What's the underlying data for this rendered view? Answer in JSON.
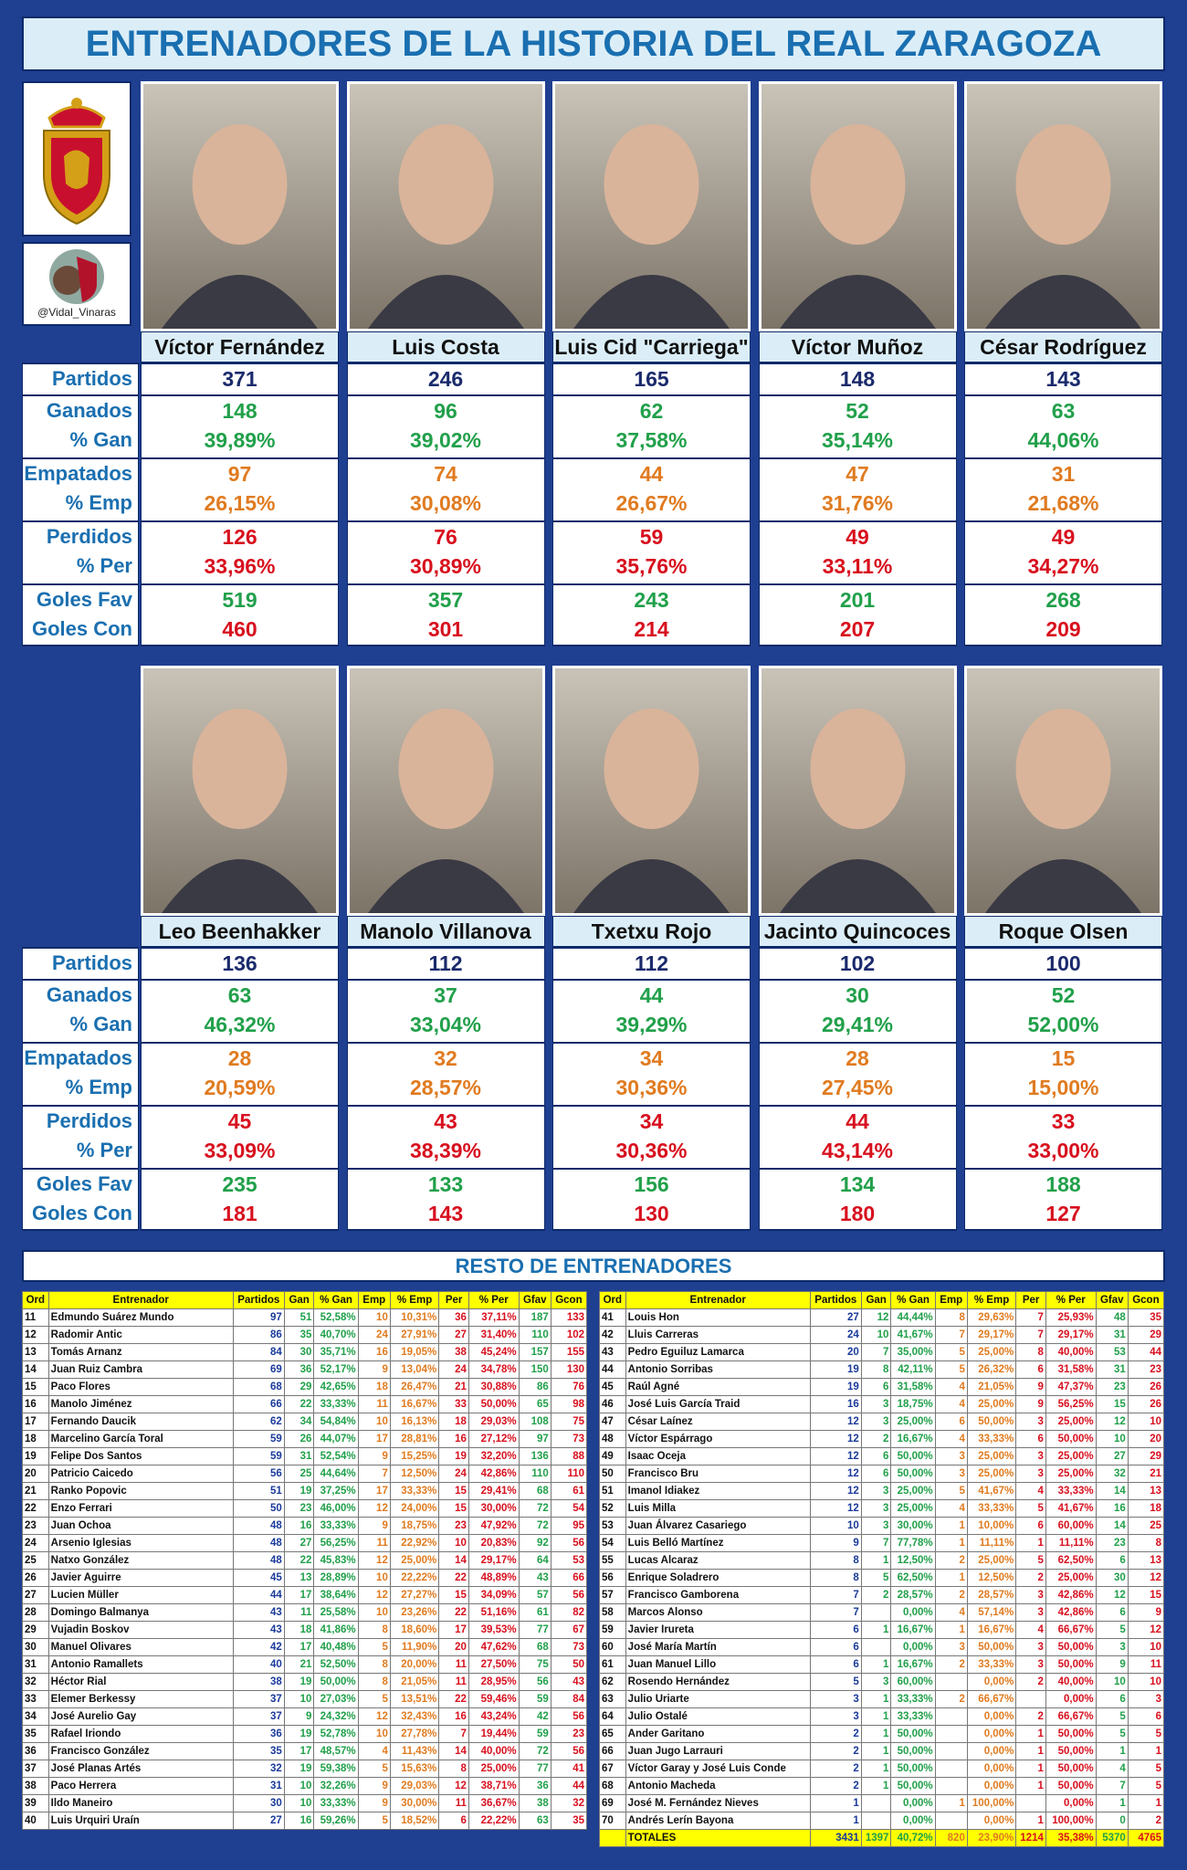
{
  "title": "ENTRENADORES DE LA HISTORIA DEL REAL ZARAGOZA",
  "handle": "@Vidal_Vinaras",
  "stat_labels": [
    "Partidos",
    "Ganados",
    "% Gan",
    "Empatados",
    "% Emp",
    "Perdidos",
    "% Per",
    "Goles Fav",
    "Goles Con"
  ],
  "groups": [
    {
      "coaches": [
        {
          "name": "Víctor Fernández",
          "stats": [
            371,
            148,
            "39,89%",
            97,
            "26,15%",
            126,
            "33,96%",
            519,
            460
          ]
        },
        {
          "name": "Luis Costa",
          "stats": [
            246,
            96,
            "39,02%",
            74,
            "30,08%",
            76,
            "30,89%",
            357,
            301
          ]
        },
        {
          "name": "Luis Cid \"Carriega\"",
          "stats": [
            165,
            62,
            "37,58%",
            44,
            "26,67%",
            59,
            "35,76%",
            243,
            214
          ]
        },
        {
          "name": "Víctor Muñoz",
          "stats": [
            148,
            52,
            "35,14%",
            47,
            "31,76%",
            49,
            "33,11%",
            201,
            207
          ]
        },
        {
          "name": "César Rodríguez",
          "stats": [
            143,
            63,
            "44,06%",
            31,
            "21,68%",
            49,
            "34,27%",
            268,
            209
          ]
        }
      ]
    },
    {
      "coaches": [
        {
          "name": "Leo Beenhakker",
          "stats": [
            136,
            63,
            "46,32%",
            28,
            "20,59%",
            45,
            "33,09%",
            235,
            181
          ]
        },
        {
          "name": "Manolo Villanova",
          "stats": [
            112,
            37,
            "33,04%",
            32,
            "28,57%",
            43,
            "38,39%",
            133,
            143
          ]
        },
        {
          "name": "Txetxu Rojo",
          "stats": [
            112,
            44,
            "39,29%",
            34,
            "30,36%",
            34,
            "30,36%",
            156,
            130
          ]
        },
        {
          "name": "Jacinto Quincoces",
          "stats": [
            102,
            30,
            "29,41%",
            28,
            "27,45%",
            44,
            "43,14%",
            134,
            180
          ]
        },
        {
          "name": "Roque Olsen",
          "stats": [
            100,
            52,
            "52,00%",
            15,
            "15,00%",
            33,
            "33,00%",
            188,
            127
          ]
        }
      ]
    }
  ],
  "rest": {
    "title": "RESTO DE ENTRENADORES",
    "columns": [
      "Ord",
      "Entrenador",
      "Partidos",
      "Gan",
      "% Gan",
      "Emp",
      "% Emp",
      "Per",
      "% Per",
      "Gfav",
      "Gcon"
    ],
    "tables": [
      {
        "rows": [
          [
            11,
            "Edmundo Suárez Mundo",
            97,
            51,
            "52,58%",
            10,
            "10,31%",
            36,
            "37,11%",
            187,
            133
          ],
          [
            12,
            "Radomir Antic",
            86,
            35,
            "40,70%",
            24,
            "27,91%",
            27,
            "31,40%",
            110,
            102
          ],
          [
            13,
            "Tomás Arnanz",
            84,
            30,
            "35,71%",
            16,
            "19,05%",
            38,
            "45,24%",
            157,
            155
          ],
          [
            14,
            "Juan Ruiz Cambra",
            69,
            36,
            "52,17%",
            9,
            "13,04%",
            24,
            "34,78%",
            150,
            130
          ],
          [
            15,
            "Paco Flores",
            68,
            29,
            "42,65%",
            18,
            "26,47%",
            21,
            "30,88%",
            86,
            76
          ],
          [
            16,
            "Manolo Jiménez",
            66,
            22,
            "33,33%",
            11,
            "16,67%",
            33,
            "50,00%",
            65,
            98
          ],
          [
            17,
            "Fernando Daucik",
            62,
            34,
            "54,84%",
            10,
            "16,13%",
            18,
            "29,03%",
            108,
            75
          ],
          [
            18,
            "Marcelino García Toral",
            59,
            26,
            "44,07%",
            17,
            "28,81%",
            16,
            "27,12%",
            97,
            73
          ],
          [
            19,
            "Felipe Dos Santos",
            59,
            31,
            "52,54%",
            9,
            "15,25%",
            19,
            "32,20%",
            136,
            88
          ],
          [
            20,
            "Patricio Caicedo",
            56,
            25,
            "44,64%",
            7,
            "12,50%",
            24,
            "42,86%",
            110,
            110
          ],
          [
            21,
            "Ranko Popovic",
            51,
            19,
            "37,25%",
            17,
            "33,33%",
            15,
            "29,41%",
            68,
            61
          ],
          [
            22,
            "Enzo Ferrari",
            50,
            23,
            "46,00%",
            12,
            "24,00%",
            15,
            "30,00%",
            72,
            54
          ],
          [
            23,
            "Juan Ochoa",
            48,
            16,
            "33,33%",
            9,
            "18,75%",
            23,
            "47,92%",
            72,
            95
          ],
          [
            24,
            "Arsenio Iglesias",
            48,
            27,
            "56,25%",
            11,
            "22,92%",
            10,
            "20,83%",
            92,
            56
          ],
          [
            25,
            "Natxo González",
            48,
            22,
            "45,83%",
            12,
            "25,00%",
            14,
            "29,17%",
            64,
            53
          ],
          [
            26,
            "Javier Aguirre",
            45,
            13,
            "28,89%",
            10,
            "22,22%",
            22,
            "48,89%",
            43,
            66
          ],
          [
            27,
            "Lucien Müller",
            44,
            17,
            "38,64%",
            12,
            "27,27%",
            15,
            "34,09%",
            57,
            56
          ],
          [
            28,
            "Domingo Balmanya",
            43,
            11,
            "25,58%",
            10,
            "23,26%",
            22,
            "51,16%",
            61,
            82
          ],
          [
            29,
            "Vujadin Boskov",
            43,
            18,
            "41,86%",
            8,
            "18,60%",
            17,
            "39,53%",
            77,
            67
          ],
          [
            30,
            "Manuel Olivares",
            42,
            17,
            "40,48%",
            5,
            "11,90%",
            20,
            "47,62%",
            68,
            73
          ],
          [
            31,
            "Antonio Ramallets",
            40,
            21,
            "52,50%",
            8,
            "20,00%",
            11,
            "27,50%",
            75,
            50
          ],
          [
            32,
            "Héctor Rial",
            38,
            19,
            "50,00%",
            8,
            "21,05%",
            11,
            "28,95%",
            56,
            43
          ],
          [
            33,
            "Elemer Berkessy",
            37,
            10,
            "27,03%",
            5,
            "13,51%",
            22,
            "59,46%",
            59,
            84
          ],
          [
            34,
            "José Aurelio Gay",
            37,
            9,
            "24,32%",
            12,
            "32,43%",
            16,
            "43,24%",
            42,
            56
          ],
          [
            35,
            "Rafael Iriondo",
            36,
            19,
            "52,78%",
            10,
            "27,78%",
            7,
            "19,44%",
            59,
            23
          ],
          [
            36,
            "Francisco González",
            35,
            17,
            "48,57%",
            4,
            "11,43%",
            14,
            "40,00%",
            72,
            56
          ],
          [
            37,
            "José Planas Artés",
            32,
            19,
            "59,38%",
            5,
            "15,63%",
            8,
            "25,00%",
            77,
            41
          ],
          [
            38,
            "Paco Herrera",
            31,
            10,
            "32,26%",
            9,
            "29,03%",
            12,
            "38,71%",
            36,
            44
          ],
          [
            39,
            "Ildo Maneiro",
            30,
            10,
            "33,33%",
            9,
            "30,00%",
            11,
            "36,67%",
            38,
            32
          ],
          [
            40,
            "Luis Urquiri Uraín",
            27,
            16,
            "59,26%",
            5,
            "18,52%",
            6,
            "22,22%",
            63,
            35
          ]
        ]
      },
      {
        "rows": [
          [
            41,
            "Louis Hon",
            27,
            12,
            "44,44%",
            8,
            "29,63%",
            7,
            "25,93%",
            48,
            35
          ],
          [
            42,
            "Lluis Carreras",
            24,
            10,
            "41,67%",
            7,
            "29,17%",
            7,
            "29,17%",
            31,
            29
          ],
          [
            43,
            "Pedro Eguiluz Lamarca",
            20,
            7,
            "35,00%",
            5,
            "25,00%",
            8,
            "40,00%",
            53,
            44
          ],
          [
            44,
            "Antonio Sorribas",
            19,
            8,
            "42,11%",
            5,
            "26,32%",
            6,
            "31,58%",
            31,
            23
          ],
          [
            45,
            "Raúl Agné",
            19,
            6,
            "31,58%",
            4,
            "21,05%",
            9,
            "47,37%",
            23,
            26
          ],
          [
            46,
            "José Luis García Traid",
            16,
            3,
            "18,75%",
            4,
            "25,00%",
            9,
            "56,25%",
            15,
            26
          ],
          [
            47,
            "César Laínez",
            12,
            3,
            "25,00%",
            6,
            "50,00%",
            3,
            "25,00%",
            12,
            10
          ],
          [
            48,
            "Víctor Espárrago",
            12,
            2,
            "16,67%",
            4,
            "33,33%",
            6,
            "50,00%",
            10,
            20
          ],
          [
            49,
            "Isaac Oceja",
            12,
            6,
            "50,00%",
            3,
            "25,00%",
            3,
            "25,00%",
            27,
            29
          ],
          [
            50,
            "Francisco Bru",
            12,
            6,
            "50,00%",
            3,
            "25,00%",
            3,
            "25,00%",
            32,
            21
          ],
          [
            51,
            "Imanol Idiakez",
            12,
            3,
            "25,00%",
            5,
            "41,67%",
            4,
            "33,33%",
            14,
            13
          ],
          [
            52,
            "Luis Milla",
            12,
            3,
            "25,00%",
            4,
            "33,33%",
            5,
            "41,67%",
            16,
            18
          ],
          [
            53,
            "Juan Álvarez Casariego",
            10,
            3,
            "30,00%",
            1,
            "10,00%",
            6,
            "60,00%",
            14,
            25
          ],
          [
            54,
            "Luis Belló Martínez",
            9,
            7,
            "77,78%",
            1,
            "11,11%",
            1,
            "11,11%",
            23,
            8
          ],
          [
            55,
            "Lucas Alcaraz",
            8,
            1,
            "12,50%",
            2,
            "25,00%",
            5,
            "62,50%",
            6,
            13
          ],
          [
            56,
            "Enrique Soladrero",
            8,
            5,
            "62,50%",
            1,
            "12,50%",
            2,
            "25,00%",
            30,
            12
          ],
          [
            57,
            "Francisco Gamborena",
            7,
            2,
            "28,57%",
            2,
            "28,57%",
            3,
            "42,86%",
            12,
            15
          ],
          [
            58,
            "Marcos Alonso",
            7,
            null,
            "0,00%",
            4,
            "57,14%",
            3,
            "42,86%",
            6,
            9
          ],
          [
            59,
            "Javier Irureta",
            6,
            1,
            "16,67%",
            1,
            "16,67%",
            4,
            "66,67%",
            5,
            12
          ],
          [
            60,
            "José María Martín",
            6,
            null,
            "0,00%",
            3,
            "50,00%",
            3,
            "50,00%",
            3,
            10
          ],
          [
            61,
            "Juan Manuel Lillo",
            6,
            1,
            "16,67%",
            2,
            "33,33%",
            3,
            "50,00%",
            9,
            11
          ],
          [
            62,
            "Rosendo Hernández",
            5,
            3,
            "60,00%",
            null,
            "0,00%",
            2,
            "40,00%",
            10,
            10
          ],
          [
            63,
            "Julio Uriarte",
            3,
            1,
            "33,33%",
            2,
            "66,67%",
            null,
            "0,00%",
            6,
            3
          ],
          [
            64,
            "Julio Ostalé",
            3,
            1,
            "33,33%",
            null,
            "0,00%",
            2,
            "66,67%",
            5,
            6
          ],
          [
            65,
            "Ander Garitano",
            2,
            1,
            "50,00%",
            null,
            "0,00%",
            1,
            "50,00%",
            5,
            5
          ],
          [
            66,
            "Juan Jugo Larrauri",
            2,
            1,
            "50,00%",
            null,
            "0,00%",
            1,
            "50,00%",
            1,
            1
          ],
          [
            67,
            "Víctor Garay y José Luis Conde",
            2,
            1,
            "50,00%",
            null,
            "0,00%",
            1,
            "50,00%",
            4,
            5
          ],
          [
            68,
            "Antonio Macheda",
            2,
            1,
            "50,00%",
            null,
            "0,00%",
            1,
            "50,00%",
            7,
            5
          ],
          [
            69,
            "José M. Fernández Nieves",
            1,
            null,
            "0,00%",
            1,
            "100,00%",
            null,
            "0,00%",
            1,
            1
          ],
          [
            70,
            "Andrés Lerín Bayona",
            1,
            null,
            "0,00%",
            null,
            "0,00%",
            1,
            "100,00%",
            0,
            2
          ]
        ],
        "totals": [
          "TOTALES",
          3431,
          1397,
          "40,72%",
          820,
          "23,90%",
          1214,
          "35,38%",
          5370,
          4765
        ]
      }
    ]
  }
}
